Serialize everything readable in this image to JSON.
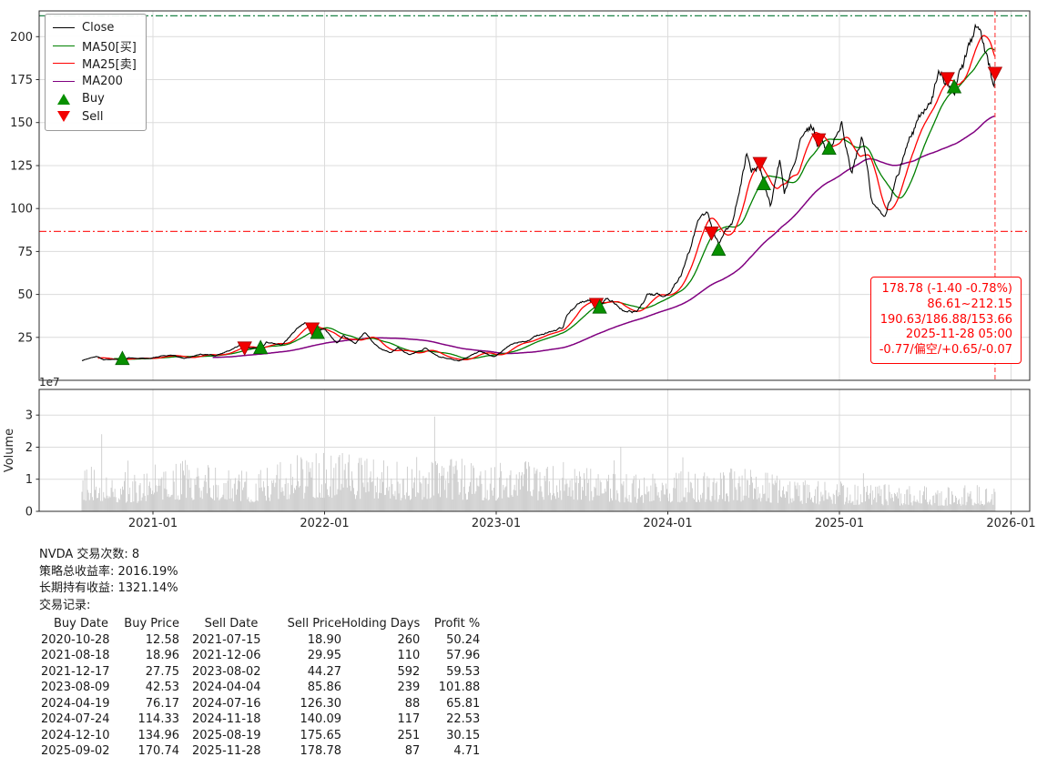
{
  "chart_data": {
    "type": "line",
    "symbol": "NVDA",
    "legend": [
      "Close",
      "MA50[买]",
      "MA25[卖]",
      "MA200",
      "Buy",
      "Sell"
    ],
    "colors": {
      "close": "#000000",
      "ma50": "#008000",
      "ma25": "#ff0000",
      "ma200": "#800080",
      "buy_marker": "#089000",
      "sell_marker": "#f20000",
      "volume": "#c9c9c9",
      "grid": "#dcdcdc",
      "upper_band": "#1e8449",
      "lower_band": "#ff2a2a",
      "vline": "#ff4d4d",
      "annotation": "#ff0000",
      "axis": "#2b2b2b"
    },
    "x_ticks": [
      "2021-01",
      "2022-01",
      "2023-01",
      "2024-01",
      "2025-01",
      "2026-01"
    ],
    "y_ticks": [
      25,
      50,
      75,
      100,
      125,
      150,
      175,
      200
    ],
    "ylim": [
      0,
      215
    ],
    "xlim_years": [
      2020.337,
      2026.109
    ],
    "grid": true,
    "legend_position": "upper-left",
    "volume_axis": {
      "label": "Volume",
      "scale_label": "1e7",
      "ticks": [
        0,
        1,
        2,
        3
      ],
      "ylim": [
        0,
        3.8
      ]
    },
    "hlines": [
      {
        "value": 212.15,
        "style": "dashdot",
        "color_key": "upper_band"
      },
      {
        "value": 86.61,
        "style": "dashdot",
        "color_key": "lower_band"
      }
    ],
    "vline": {
      "date": "2025-11-28",
      "style": "dashed",
      "color_key": "vline"
    },
    "annotation": {
      "lines": [
        "178.78 (-1.40 -0.78%)",
        "86.61~212.15",
        "190.63/186.88/153.66",
        "2025-11-28 05:00",
        "-0.77/偏空/+0.65/-0.07"
      ]
    },
    "close_anchors": [
      [
        "2020-08-03",
        11.6
      ],
      [
        "2020-09-02",
        14.0
      ],
      [
        "2020-09-18",
        12.2
      ],
      [
        "2020-10-28",
        12.6
      ],
      [
        "2020-11-20",
        13.5
      ],
      [
        "2020-12-28",
        13.1
      ],
      [
        "2021-02-12",
        14.7
      ],
      [
        "2021-03-08",
        12.7
      ],
      [
        "2021-04-12",
        15.3
      ],
      [
        "2021-05-14",
        14.4
      ],
      [
        "2021-06-21",
        18.7
      ],
      [
        "2021-07-06",
        20.5
      ],
      [
        "2021-07-15",
        19.0
      ],
      [
        "2021-08-18",
        19.0
      ],
      [
        "2021-08-30",
        22.5
      ],
      [
        "2021-10-04",
        20.4
      ],
      [
        "2021-11-04",
        29.7
      ],
      [
        "2021-11-22",
        33.1
      ],
      [
        "2021-12-06",
        30.0
      ],
      [
        "2021-12-17",
        27.8
      ],
      [
        "2022-01-03",
        30.1
      ],
      [
        "2022-01-27",
        22.1
      ],
      [
        "2022-02-10",
        26.0
      ],
      [
        "2022-03-07",
        21.4
      ],
      [
        "2022-03-29",
        28.1
      ],
      [
        "2022-04-27",
        18.6
      ],
      [
        "2022-05-20",
        16.4
      ],
      [
        "2022-06-06",
        19.0
      ],
      [
        "2022-07-01",
        14.9
      ],
      [
        "2022-08-04",
        19.1
      ],
      [
        "2022-09-01",
        13.9
      ],
      [
        "2022-10-14",
        11.2
      ],
      [
        "2022-11-04",
        13.6
      ],
      [
        "2022-11-25",
        16.3
      ],
      [
        "2022-12-28",
        14.0
      ],
      [
        "2023-01-27",
        20.3
      ],
      [
        "2023-02-14",
        21.5
      ],
      [
        "2023-03-14",
        23.8
      ],
      [
        "2023-04-06",
        26.8
      ],
      [
        "2023-05-23",
        30.6
      ],
      [
        "2023-05-31",
        38.0
      ],
      [
        "2023-06-20",
        43.0
      ],
      [
        "2023-07-14",
        46.5
      ],
      [
        "2023-08-02",
        44.3
      ],
      [
        "2023-08-09",
        42.5
      ],
      [
        "2023-08-24",
        47.2
      ],
      [
        "2023-09-27",
        42.1
      ],
      [
        "2023-10-27",
        40.3
      ],
      [
        "2023-11-20",
        50.0
      ],
      [
        "2023-12-15",
        48.9
      ],
      [
        "2024-01-08",
        52.2
      ],
      [
        "2024-02-02",
        66.2
      ],
      [
        "2024-03-08",
        92.5
      ],
      [
        "2024-03-25",
        94.0
      ],
      [
        "2024-04-04",
        85.9
      ],
      [
        "2024-04-19",
        76.2
      ],
      [
        "2024-05-22",
        95.0
      ],
      [
        "2024-06-18",
        135.6
      ],
      [
        "2024-06-28",
        123.5
      ],
      [
        "2024-07-16",
        126.3
      ],
      [
        "2024-07-24",
        114.3
      ],
      [
        "2024-08-07",
        99.0
      ],
      [
        "2024-08-28",
        125.6
      ],
      [
        "2024-09-06",
        102.8
      ],
      [
        "2024-09-26",
        124.0
      ],
      [
        "2024-10-21",
        143.7
      ],
      [
        "2024-11-07",
        148.9
      ],
      [
        "2024-11-18",
        140.1
      ],
      [
        "2024-11-25",
        142.0
      ],
      [
        "2024-12-10",
        135.0
      ],
      [
        "2025-01-06",
        149.4
      ],
      [
        "2025-01-27",
        118.4
      ],
      [
        "2025-02-18",
        139.4
      ],
      [
        "2025-03-10",
        106.1
      ],
      [
        "2025-04-07",
        94.3
      ],
      [
        "2025-04-25",
        111.0
      ],
      [
        "2025-05-28",
        135.5
      ],
      [
        "2025-06-25",
        154.3
      ],
      [
        "2025-07-31",
        177.9
      ],
      [
        "2025-08-19",
        175.7
      ],
      [
        "2025-08-29",
        174.2
      ],
      [
        "2025-09-02",
        170.7
      ],
      [
        "2025-09-22",
        183.6
      ],
      [
        "2025-10-29",
        207.0
      ],
      [
        "2025-11-10",
        193.2
      ],
      [
        "2025-11-20",
        180.6
      ],
      [
        "2025-11-28",
        178.78
      ]
    ],
    "volume_anchors": [
      [
        "2020-08-01",
        0.95
      ],
      [
        "2020-10-01",
        0.8
      ],
      [
        "2020-12-01",
        0.75
      ],
      [
        "2021-02-01",
        1.05
      ],
      [
        "2021-05-01",
        0.95
      ],
      [
        "2021-08-01",
        0.75
      ],
      [
        "2021-11-01",
        1.1
      ],
      [
        "2022-01-01",
        1.2
      ],
      [
        "2022-04-01",
        1.05
      ],
      [
        "2022-07-01",
        0.95
      ],
      [
        "2022-10-01",
        1.05
      ],
      [
        "2023-01-01",
        0.95
      ],
      [
        "2023-05-01",
        1.0
      ],
      [
        "2023-08-01",
        0.85
      ],
      [
        "2023-11-01",
        0.75
      ],
      [
        "2024-02-01",
        0.8
      ],
      [
        "2024-06-01",
        0.85
      ],
      [
        "2024-09-01",
        0.7
      ],
      [
        "2024-12-01",
        0.6
      ],
      [
        "2025-03-01",
        0.55
      ],
      [
        "2025-06-01",
        0.5
      ],
      [
        "2025-09-01",
        0.5
      ],
      [
        "2025-11-28",
        0.55
      ]
    ]
  },
  "summary": {
    "trade_count": "NVDA 交易次数: 8",
    "total_return": "策略总收益率: 2016.19%",
    "hold_return": "长期持有收益: 1321.14%",
    "record_label": "交易记录:"
  },
  "trades_table": {
    "headers": [
      "Buy Date",
      "Buy Price",
      "Sell Date",
      "Sell Price",
      "Holding Days",
      "Profit %"
    ],
    "rows": [
      [
        "2020-10-28",
        "12.58",
        "2021-07-15",
        "18.90",
        "260",
        "50.24"
      ],
      [
        "2021-08-18",
        "18.96",
        "2021-12-06",
        "29.95",
        "110",
        "57.96"
      ],
      [
        "2021-12-17",
        "27.75",
        "2023-08-02",
        "44.27",
        "592",
        "59.53"
      ],
      [
        "2023-08-09",
        "42.53",
        "2024-04-04",
        "85.86",
        "239",
        "101.88"
      ],
      [
        "2024-04-19",
        "76.17",
        "2024-07-16",
        "126.30",
        "88",
        "65.81"
      ],
      [
        "2024-07-24",
        "114.33",
        "2024-11-18",
        "140.09",
        "117",
        "22.53"
      ],
      [
        "2024-12-10",
        "134.96",
        "2025-08-19",
        "175.65",
        "251",
        "30.15"
      ],
      [
        "2025-09-02",
        "170.74",
        "2025-11-28",
        "178.78",
        "87",
        "4.71"
      ]
    ]
  }
}
